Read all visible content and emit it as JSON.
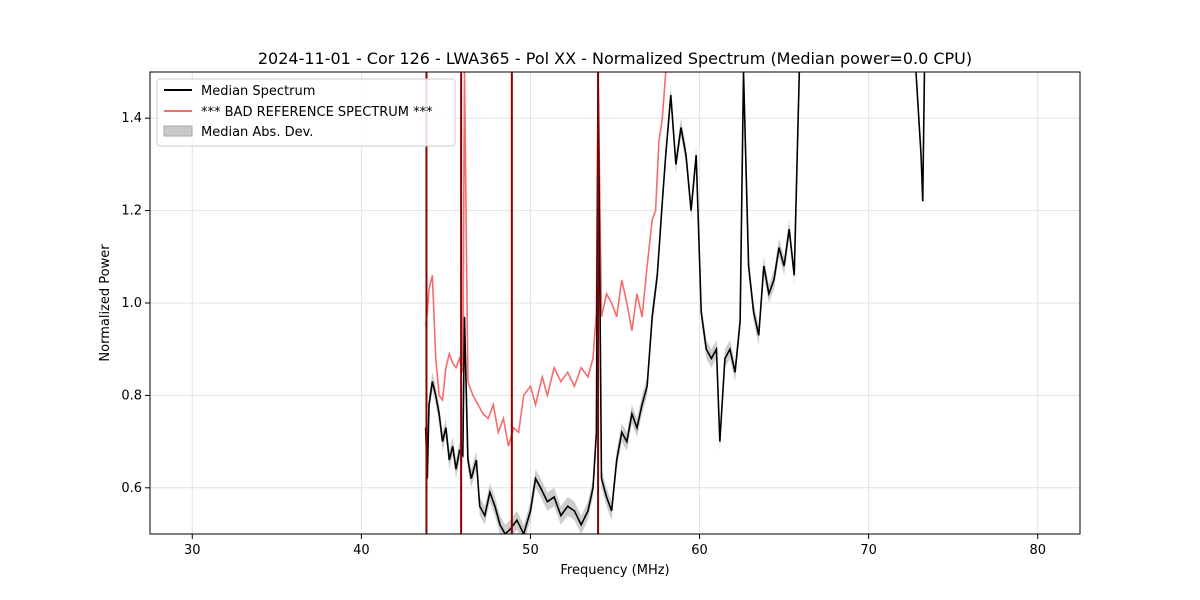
{
  "chart_data": {
    "type": "line",
    "title": "2024-11-01 - Cor 126 - LWA365 - Pol XX - Normalized Spectrum (Median power=0.0 CPU)",
    "xlabel": "Frequency (MHz)",
    "ylabel": "Normalized Power",
    "xlim": [
      27.5,
      82.5
    ],
    "ylim": [
      0.5,
      1.5
    ],
    "xticks": [
      30,
      40,
      50,
      60,
      70,
      80
    ],
    "yticks": [
      0.6,
      0.8,
      1.0,
      1.2,
      1.4
    ],
    "grid": true,
    "legend_position": "top-left",
    "colors": {
      "median": "#000000",
      "reference": "#f76b6b",
      "mad": "#c8c8c8",
      "spike": "#8b0000"
    },
    "legend": [
      "Median Spectrum",
      "*** BAD REFERENCE SPECTRUM ***",
      "Median Abs. Dev."
    ],
    "series": [
      {
        "name": "Median Spectrum",
        "x": [
          43.8,
          43.9,
          44.0,
          44.2,
          44.4,
          44.6,
          44.8,
          45.0,
          45.2,
          45.4,
          45.6,
          45.8,
          46.0,
          46.1,
          46.3,
          46.5,
          46.8,
          47.0,
          47.3,
          47.6,
          47.9,
          48.2,
          48.5,
          48.8,
          49.2,
          49.6,
          50.0,
          50.3,
          50.6,
          51.0,
          51.4,
          51.8,
          52.2,
          52.6,
          53.0,
          53.4,
          53.7,
          53.9,
          54.0,
          54.2,
          54.5,
          54.8,
          55.1,
          55.4,
          55.7,
          56.0,
          56.3,
          56.6,
          56.9,
          57.2,
          57.5,
          57.8,
          58.0,
          58.3,
          58.6,
          58.9,
          59.2,
          59.5,
          59.8,
          60.1,
          60.4,
          60.7,
          61.0,
          61.2,
          61.5,
          61.8,
          62.1,
          62.4,
          62.6,
          62.9,
          63.2,
          63.5,
          63.8,
          64.1,
          64.4,
          64.7,
          65.0,
          65.3,
          65.6,
          65.9
        ],
        "values": [
          0.73,
          0.62,
          0.78,
          0.83,
          0.8,
          0.76,
          0.7,
          0.73,
          0.66,
          0.69,
          0.64,
          0.68,
          0.67,
          0.97,
          0.66,
          0.62,
          0.66,
          0.56,
          0.54,
          0.59,
          0.56,
          0.52,
          0.5,
          0.51,
          0.53,
          0.5,
          0.55,
          0.62,
          0.6,
          0.57,
          0.58,
          0.54,
          0.56,
          0.55,
          0.52,
          0.55,
          0.6,
          0.72,
          1.5,
          0.62,
          0.58,
          0.55,
          0.66,
          0.72,
          0.7,
          0.76,
          0.73,
          0.78,
          0.82,
          0.97,
          1.06,
          1.22,
          1.32,
          1.45,
          1.3,
          1.38,
          1.32,
          1.2,
          1.32,
          0.98,
          0.9,
          0.88,
          0.9,
          0.7,
          0.88,
          0.9,
          0.85,
          0.96,
          1.5,
          1.08,
          0.98,
          0.93,
          1.08,
          1.02,
          1.05,
          1.12,
          1.08,
          1.16,
          1.06,
          1.5
        ]
      },
      {
        "name": "*** BAD REFERENCE SPECTRUM ***",
        "x": [
          43.8,
          43.9,
          44.0,
          44.2,
          44.4,
          44.6,
          44.8,
          45.0,
          45.2,
          45.4,
          45.6,
          45.8,
          46.0,
          46.1,
          46.3,
          46.6,
          46.9,
          47.2,
          47.5,
          47.8,
          48.1,
          48.4,
          48.7,
          49.0,
          49.3,
          49.6,
          50.0,
          50.3,
          50.7,
          51.0,
          51.4,
          51.8,
          52.2,
          52.6,
          53.0,
          53.4,
          53.7,
          53.9,
          54.0,
          54.2,
          54.5,
          54.8,
          55.1,
          55.4,
          55.7,
          56.0,
          56.3,
          56.6,
          56.9,
          57.2,
          57.4,
          57.6,
          57.8,
          58.0
        ],
        "values": [
          0.95,
          0.98,
          1.03,
          1.06,
          0.88,
          0.8,
          0.79,
          0.86,
          0.89,
          0.87,
          0.86,
          0.88,
          0.85,
          1.5,
          0.83,
          0.8,
          0.78,
          0.76,
          0.75,
          0.78,
          0.72,
          0.75,
          0.69,
          0.73,
          0.72,
          0.8,
          0.82,
          0.78,
          0.84,
          0.8,
          0.86,
          0.83,
          0.85,
          0.82,
          0.86,
          0.84,
          0.88,
          0.98,
          1.5,
          0.97,
          1.02,
          1.0,
          0.97,
          1.05,
          1.0,
          0.94,
          1.02,
          0.97,
          1.08,
          1.18,
          1.2,
          1.35,
          1.4,
          1.5
        ]
      }
    ],
    "mad_band_width": 0.02,
    "spikes_x": [
      43.85,
      45.9,
      48.9,
      54.0
    ],
    "isolated_dip": {
      "x": [
        72.8,
        72.9,
        73.0,
        73.1,
        73.2,
        73.3
      ],
      "values": [
        1.5,
        1.44,
        1.38,
        1.32,
        1.22,
        1.5
      ]
    }
  }
}
